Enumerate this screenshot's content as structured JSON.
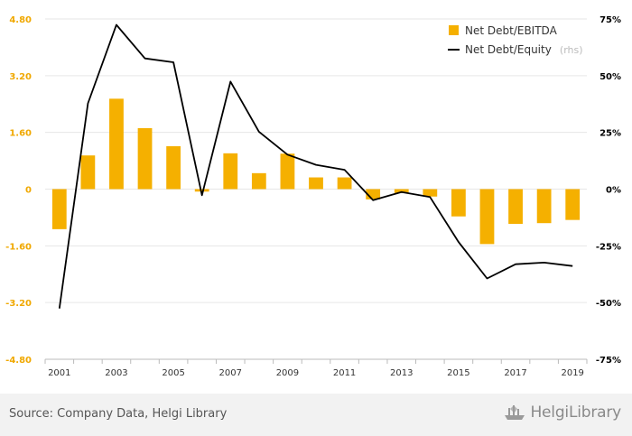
{
  "chart_data": {
    "type": "bar+line",
    "x": [
      "2001",
      "2002",
      "2003",
      "2004",
      "2005",
      "2006",
      "2007",
      "2008",
      "2009",
      "2010",
      "2011",
      "2012",
      "2013",
      "2014",
      "2015",
      "2016",
      "2017",
      "2018",
      "2019"
    ],
    "x_tick_labels": [
      "2001",
      "2003",
      "2005",
      "2007",
      "2009",
      "2011",
      "2013",
      "2015",
      "2017",
      "2019"
    ],
    "series": [
      {
        "name": "Net Debt/EBITDA",
        "type": "bar",
        "axis": "left",
        "color": "#f5b000",
        "values": [
          -1.13,
          0.95,
          2.55,
          1.72,
          1.21,
          -0.07,
          1.01,
          0.45,
          1.0,
          0.33,
          0.33,
          -0.29,
          -0.11,
          -0.21,
          -0.77,
          -1.55,
          -0.98,
          -0.96,
          -0.87
        ]
      },
      {
        "name": "Net Debt/Equity",
        "name_suffix": "(rhs)",
        "type": "line",
        "axis": "right",
        "color": "#000000",
        "values": [
          -52.6,
          37.8,
          72.4,
          57.6,
          55.9,
          -2.7,
          47.4,
          25.3,
          15.2,
          10.7,
          8.5,
          -4.9,
          -1.3,
          -3.5,
          -23.3,
          -39.4,
          -33.1,
          -32.4,
          -33.9
        ]
      }
    ],
    "left_axis": {
      "min": -4.8,
      "max": 4.8,
      "ticks": [
        "4.80",
        "3.20",
        "1.60",
        "0",
        "-1.60",
        "-3.20",
        "-4.80"
      ]
    },
    "right_axis": {
      "min": -75,
      "max": 75,
      "ticks": [
        "75%",
        "50%",
        "25%",
        "0%",
        "-25%",
        "-50%",
        "-75%"
      ]
    },
    "legend_position": "top-right",
    "grid": true
  },
  "footer": {
    "source": "Source: Company Data, Helgi Library",
    "logo_text_a": "Helgi",
    "logo_text_b": "Library"
  },
  "colors": {
    "bar": "#f5b000",
    "line": "#000000",
    "grid": "#e6e6e6",
    "footer_bg": "#f2f2f2"
  }
}
